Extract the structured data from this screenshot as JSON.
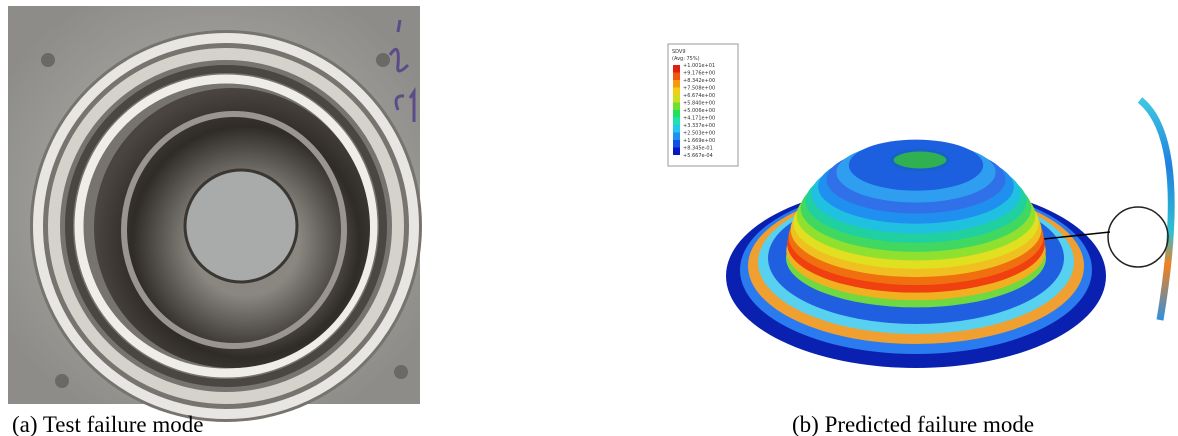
{
  "figure": {
    "panel_a": {
      "caption": "(a)  Test failure mode"
    },
    "panel_b": {
      "caption": "(b) Predicted failure mode",
      "legend": {
        "title": "SDV9",
        "subtitle": "(Avg: 75%)",
        "labels": [
          "+1.001e+01",
          "+9.176e+00",
          "+8.342e+00",
          "+7.508e+00",
          "+6.674e+00",
          "+5.840e+00",
          "+5.006e+00",
          "+4.171e+00",
          "+3.337e+00",
          "+2.503e+00",
          "+1.669e+00",
          "+8.345e-01",
          "+5.667e-04"
        ]
      }
    }
  }
}
